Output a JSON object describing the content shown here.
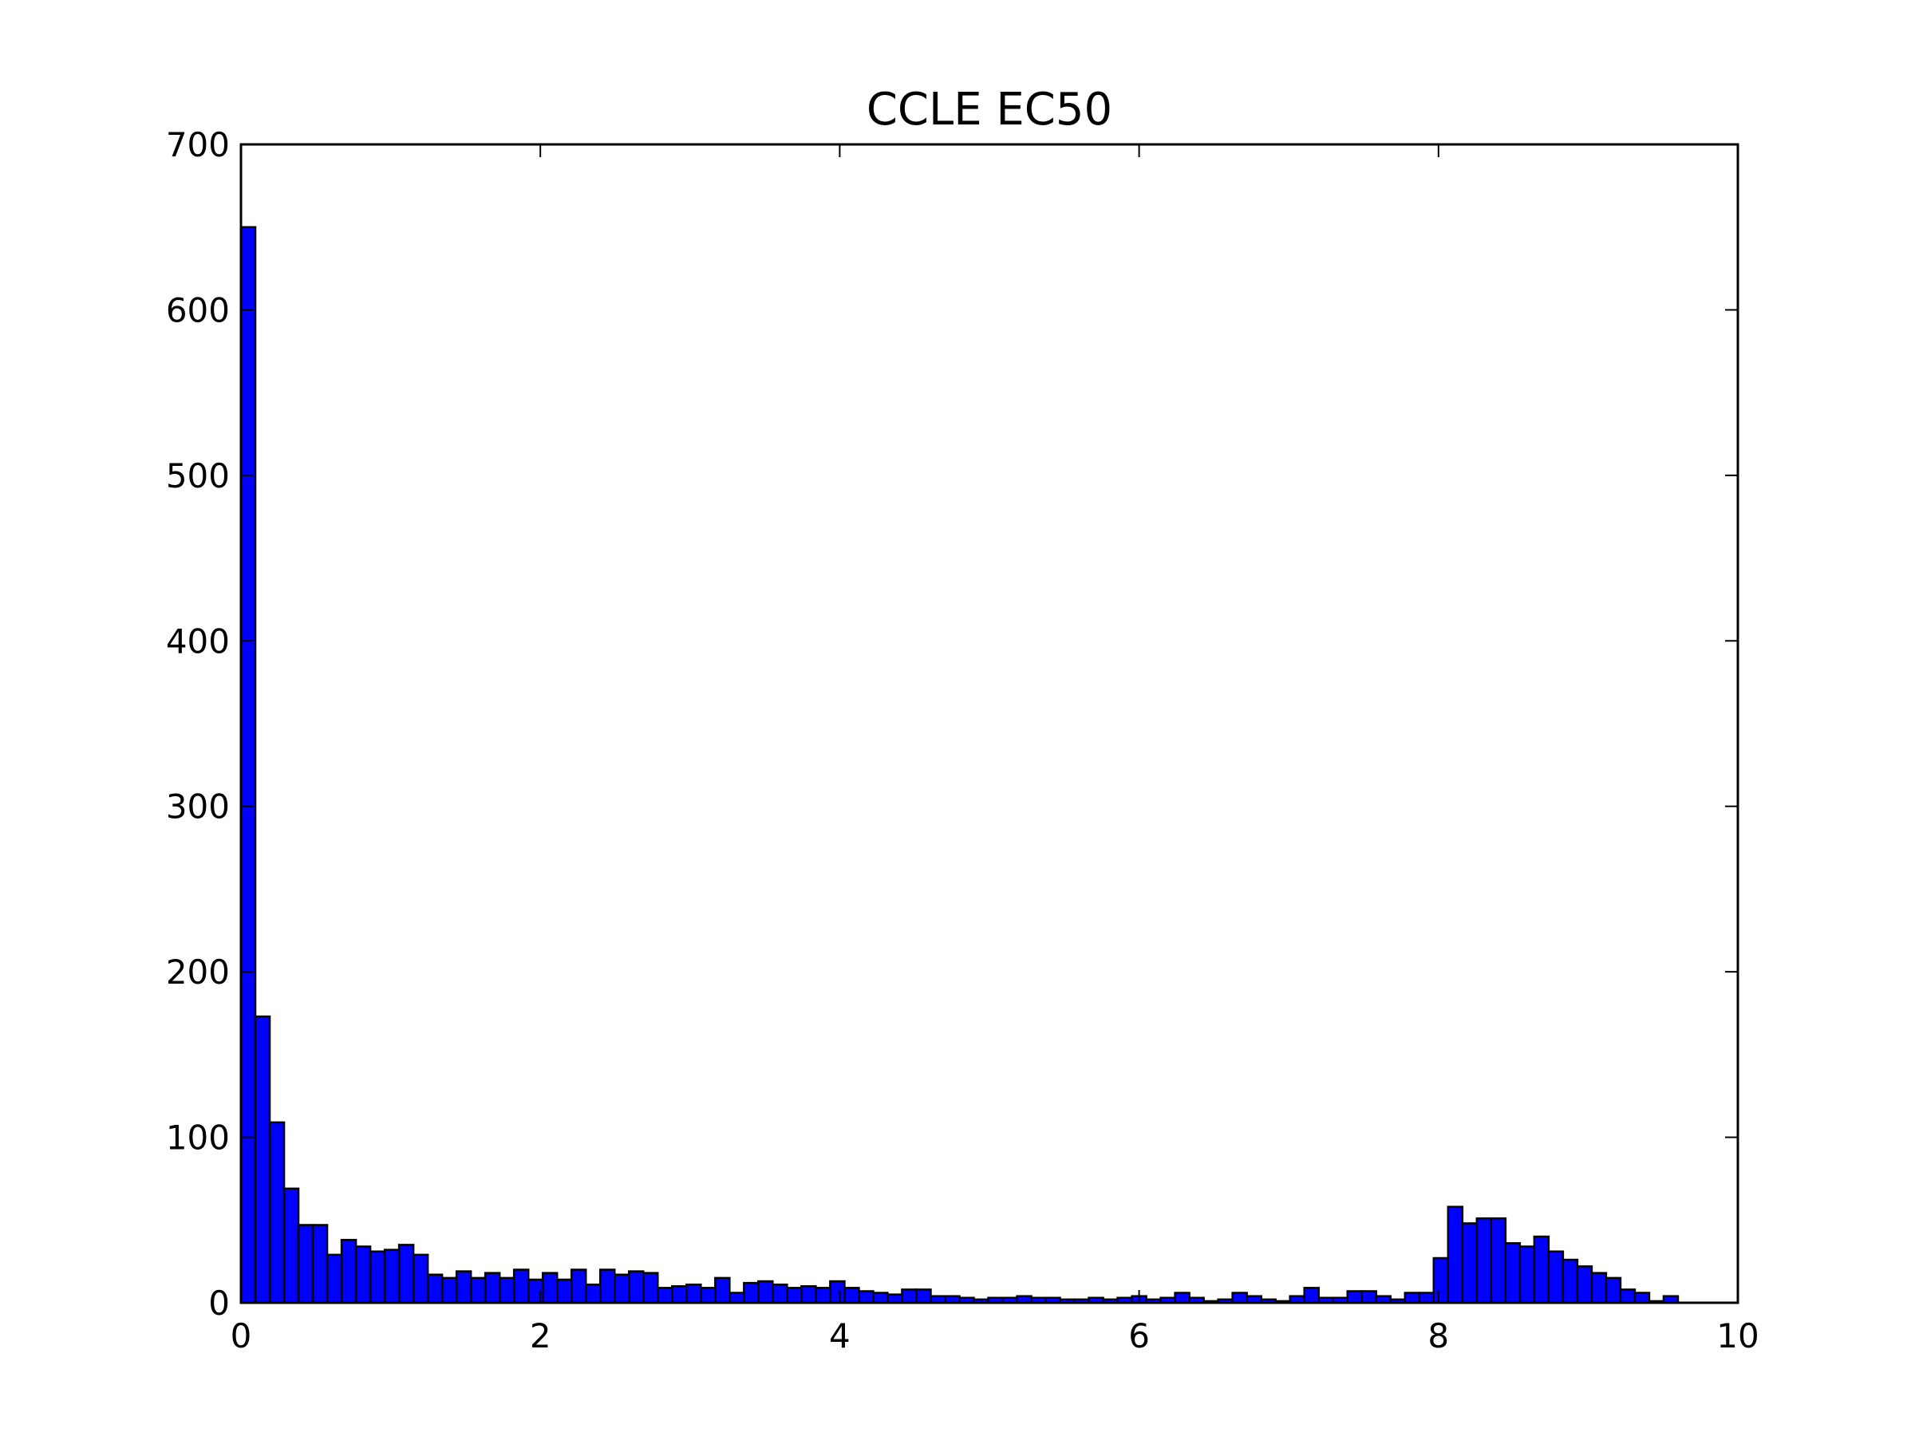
{
  "chart_data": {
    "type": "bar",
    "title": "CCLE EC50",
    "xlabel": "",
    "ylabel": "",
    "xlim": [
      0,
      10
    ],
    "ylim": [
      0,
      700
    ],
    "bin_width": 0.096,
    "x_ticks": [
      "0",
      "2",
      "4",
      "6",
      "8",
      "10"
    ],
    "y_ticks": [
      "0",
      "100",
      "200",
      "300",
      "400",
      "500",
      "600",
      "700"
    ],
    "bar_color": "#0000ff",
    "edge_color": "#000000",
    "grid": false,
    "values": [
      650,
      173,
      109,
      69,
      47,
      47,
      29,
      38,
      34,
      31,
      32,
      35,
      29,
      17,
      15,
      19,
      15,
      18,
      15,
      20,
      14,
      18,
      14,
      20,
      11,
      20,
      17,
      19,
      18,
      9,
      10,
      11,
      9,
      15,
      6,
      12,
      13,
      11,
      9,
      10,
      9,
      13,
      9,
      7,
      6,
      5,
      8,
      8,
      4,
      4,
      3,
      2,
      3,
      3,
      4,
      3,
      3,
      2,
      2,
      3,
      2,
      3,
      4,
      2,
      3,
      6,
      3,
      1,
      2,
      6,
      4,
      2,
      1,
      4,
      9,
      3,
      3,
      7,
      7,
      4,
      2,
      6,
      6,
      27,
      58,
      48,
      51,
      51,
      36,
      34,
      40,
      31,
      26,
      22,
      18,
      15,
      8,
      6,
      1,
      4
    ]
  }
}
